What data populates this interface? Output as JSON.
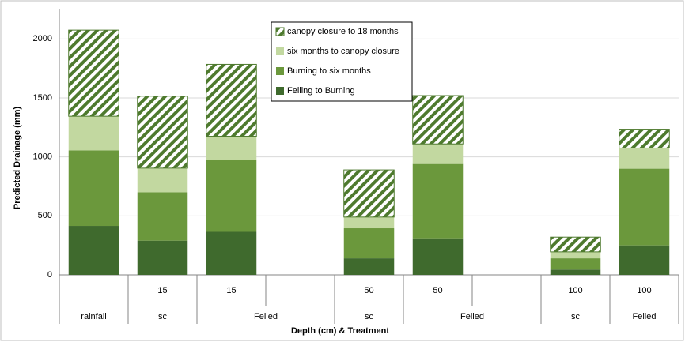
{
  "chart_data": {
    "type": "stacked-bar",
    "y_label": "Predicted Drainage (mm)",
    "x_label": "Depth (cm) & Treatment",
    "categories": [
      null,
      "15",
      "15",
      null,
      "50",
      "50",
      null,
      "100",
      "100"
    ],
    "groups": [
      {
        "label": "rainfall",
        "span": 1
      },
      {
        "label": "sc",
        "span": 1
      },
      {
        "label": "Felled",
        "span": 2
      },
      {
        "label": "sc",
        "span": 1
      },
      {
        "label": "Felled",
        "span": 2
      },
      {
        "label": "sc",
        "span": 1
      },
      {
        "label": "Felled",
        "span": 1
      }
    ],
    "series": [
      {
        "name": "Felling to Burning",
        "color": "#3f6a2d",
        "values": [
          415,
          290,
          365,
          null,
          140,
          310,
          null,
          45,
          250
        ]
      },
      {
        "name": "Burning to six months",
        "color": "#6b983c",
        "values": [
          640,
          410,
          610,
          null,
          255,
          630,
          null,
          95,
          650
        ]
      },
      {
        "name": "six months to canopy closure",
        "color": "#c2d8a0",
        "values": [
          290,
          205,
          200,
          null,
          95,
          170,
          null,
          55,
          175
        ]
      },
      {
        "name": "canopy closure to 18 months",
        "color": "#4e7a2e",
        "hatch": true,
        "values": [
          730,
          610,
          610,
          null,
          400,
          410,
          null,
          125,
          160
        ]
      }
    ],
    "ylim": [
      0,
      2250
    ],
    "yticks": [
      0,
      500,
      1000,
      1500,
      2000
    ],
    "grid": true,
    "legend": "top"
  }
}
